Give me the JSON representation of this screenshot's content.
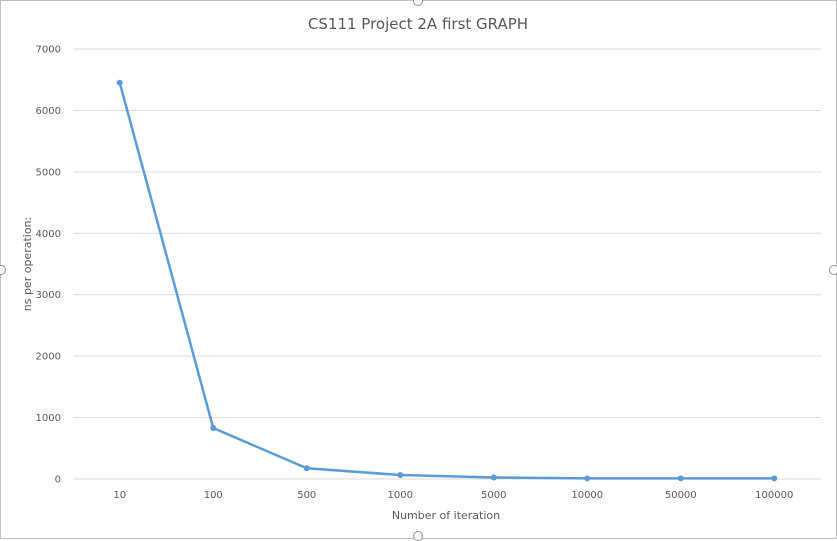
{
  "chart_data": {
    "type": "line",
    "title": "CS111 Project 2A first GRAPH",
    "xlabel": "Number of iteration",
    "ylabel": "ns per operation:",
    "categories": [
      "10",
      "100",
      "500",
      "1000",
      "5000",
      "10000",
      "50000",
      "100000"
    ],
    "series": [
      {
        "values": [
          6450,
          830,
          175,
          65,
          25,
          10,
          10,
          10
        ]
      }
    ],
    "ylim": [
      0,
      7000
    ],
    "yticks": [
      0,
      1000,
      2000,
      3000,
      4000,
      5000,
      6000,
      7000
    ],
    "grid": true,
    "legend": "none",
    "colors": {
      "line": "#5b9bd5",
      "grid": "#d9d9d9",
      "text": "#595959"
    }
  }
}
